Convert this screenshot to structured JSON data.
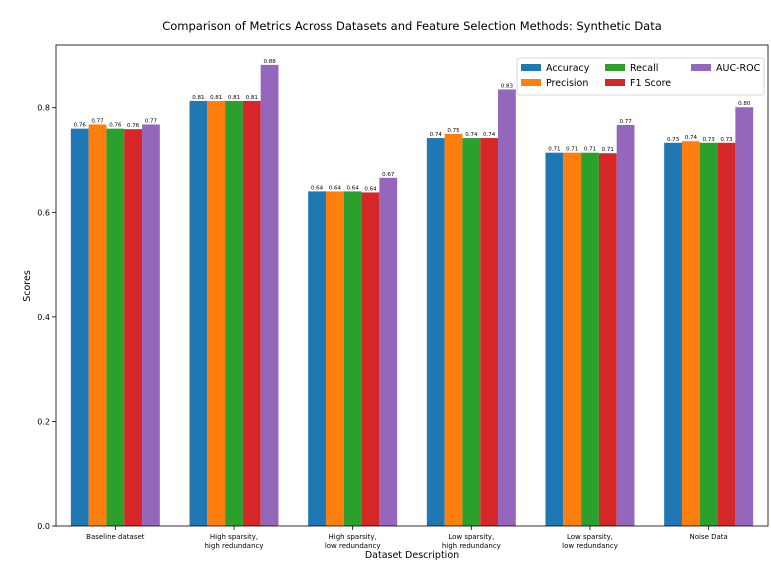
{
  "chart_data": {
    "type": "bar",
    "title": "Comparison of Metrics Across Datasets and Feature Selection Methods: Synthetic Data",
    "xlabel": "Dataset Description",
    "ylabel": "Scores",
    "ylim": [
      0,
      0.92
    ],
    "yticks": [
      "0.0",
      "0.2",
      "0.4",
      "0.6",
      "0.8"
    ],
    "ytick_values": [
      0,
      0.2,
      0.4,
      0.6,
      0.8
    ],
    "grid": false,
    "legend_position": "top-right",
    "categories": [
      [
        "Baseline dataset"
      ],
      [
        "High sparsity,",
        "high redundancy"
      ],
      [
        "High sparsity,",
        "low redundancy"
      ],
      [
        "Low sparsity,",
        "high redundancy"
      ],
      [
        "Low sparsity,",
        "low redundancy"
      ],
      [
        "Noise Data"
      ]
    ],
    "series": [
      {
        "name": "Accuracy",
        "color": "#1f77b4",
        "values": [
          0.76,
          0.813,
          0.64,
          0.742,
          0.714,
          0.733
        ],
        "labels": [
          "0.76",
          "0.81",
          "0.64",
          "0.74",
          "0.71",
          "0.73"
        ]
      },
      {
        "name": "Precision",
        "color": "#ff7f0e",
        "values": [
          0.768,
          0.813,
          0.64,
          0.75,
          0.714,
          0.736
        ],
        "labels": [
          "0.77",
          "0.81",
          "0.64",
          "0.75",
          "0.71",
          "0.74"
        ]
      },
      {
        "name": "Recall",
        "color": "#2ca02c",
        "values": [
          0.76,
          0.813,
          0.64,
          0.742,
          0.714,
          0.733
        ],
        "labels": [
          "0.76",
          "0.81",
          "0.64",
          "0.74",
          "0.71",
          "0.73"
        ]
      },
      {
        "name": "F1 Score",
        "color": "#d62728",
        "values": [
          0.759,
          0.813,
          0.638,
          0.742,
          0.713,
          0.733
        ],
        "labels": [
          "0.76",
          "0.81",
          "0.64",
          "0.74",
          "0.71",
          "0.73"
        ]
      },
      {
        "name": "AUC-ROC",
        "color": "#9467bd",
        "values": [
          0.768,
          0.882,
          0.666,
          0.835,
          0.767,
          0.801
        ],
        "labels": [
          "0.77",
          "0.88",
          "0.67",
          "0.83",
          "0.77",
          "0.80"
        ]
      }
    ]
  }
}
